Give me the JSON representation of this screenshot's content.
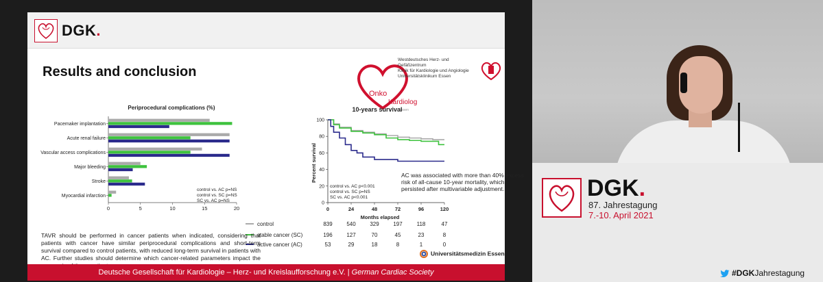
{
  "header": {
    "logo_text": "DGK",
    "logo_dot": "."
  },
  "slide": {
    "title": "Results and conclusion",
    "onko_logo": {
      "onko": "Onko",
      "kardiologie": "Kardiologie",
      "essen": "Essen"
    },
    "hospital_lines": [
      "Westdeutsches Herz- und Gefäßzentrum",
      "Klinik für Kardiologie und Angiologie",
      "Universitätsklinikum Essen"
    ],
    "footer_main": "Deutsche Gesellschaft für Kardiologie – Herz- und Kreislaufforschung e.V. | ",
    "footer_italic": "German Cardiac Society",
    "conclusion": "TAVR should be performed in cancer patients when indicated, considering that patients with cancer have similar periprocedural complications and short-term survival compared to control patients, with reduced long-term survival in patients with AC. Further studies should determine which cancer-related parameters impact the prognosis of these patients.",
    "ac_note": "AC was associated with more than 40% excess risk of all-cause 10-year mortality, which persisted after multivariable adjustment.",
    "survival_stats": [
      "control vs. AC p<0.001",
      "control vs. SC p=NS",
      "SC vs. AC p<0.001"
    ],
    "bar_stats": [
      "control vs. AC p=NS",
      "control vs. SC p=NS",
      "SC vs. AC p=NS"
    ],
    "university": "Universitätsmedizin Essen"
  },
  "chart_data": [
    {
      "type": "bar",
      "title": "Periprocedural complications (%)",
      "orientation": "horizontal",
      "categories": [
        "Pacemaker implantation",
        "Acute renal failure",
        "Vascular access complications",
        "Major bleeding",
        "Stroke",
        "Myocardial infarction"
      ],
      "series": [
        {
          "name": "control",
          "color": "#aaaaaa",
          "values": [
            15.8,
            18.9,
            14.6,
            5.0,
            3.2,
            1.2
          ]
        },
        {
          "name": "stable cancer (SC)",
          "color": "#3ec23e",
          "values": [
            19.3,
            12.8,
            12.8,
            6.0,
            3.7,
            0.5
          ]
        },
        {
          "name": "active cancer (AC)",
          "color": "#2b2b8c",
          "values": [
            9.5,
            18.9,
            18.9,
            3.8,
            5.7,
            0
          ]
        }
      ],
      "xlim": [
        0,
        20
      ],
      "xticks": [
        "0",
        "5",
        "10",
        "15",
        "20"
      ]
    },
    {
      "type": "line",
      "title": "10-years survival",
      "xlabel": "Months elapsed",
      "ylabel": "Percent survival",
      "xlim": [
        0,
        120
      ],
      "ylim": [
        0,
        100
      ],
      "xticks": [
        "0",
        "24",
        "48",
        "72",
        "96",
        "120"
      ],
      "yticks": [
        "0",
        "20",
        "40",
        "60",
        "80",
        "100"
      ],
      "series": [
        {
          "name": "control",
          "color": "#aaaaaa",
          "x": [
            0,
            6,
            12,
            24,
            36,
            48,
            60,
            72,
            84,
            96,
            108,
            120
          ],
          "y": [
            100,
            95,
            91,
            87,
            85,
            83,
            81,
            79,
            78,
            77,
            76,
            76
          ]
        },
        {
          "name": "stable cancer (SC)",
          "color": "#3ec23e",
          "x": [
            0,
            6,
            12,
            24,
            36,
            48,
            60,
            72,
            84,
            96,
            108,
            114,
            120
          ],
          "y": [
            100,
            94,
            90,
            86,
            84,
            82,
            78,
            76,
            75,
            74,
            74,
            70,
            70
          ]
        },
        {
          "name": "active cancer (AC)",
          "color": "#2b2b8c",
          "x": [
            0,
            3,
            6,
            12,
            18,
            24,
            30,
            36,
            48,
            60,
            72,
            96,
            120
          ],
          "y": [
            100,
            92,
            85,
            78,
            70,
            63,
            60,
            55,
            52,
            52,
            50,
            50,
            50
          ]
        }
      ],
      "risk_table": {
        "rows": [
          {
            "name": "control",
            "values": [
              "839",
              "540",
              "329",
              "197",
              "118",
              "47"
            ]
          },
          {
            "name": "stable cancer (SC)",
            "values": [
              "196",
              "127",
              "70",
              "45",
              "23",
              "8"
            ]
          },
          {
            "name": "active cancer (AC)",
            "values": [
              "53",
              "29",
              "18",
              "8",
              "1",
              "0"
            ]
          }
        ]
      }
    }
  ],
  "branding": {
    "dgk": "DGK",
    "dot": ".",
    "event": "87. Jahrestagung",
    "date": "7.-10. April 2021",
    "hashtag_bold": "#DGK",
    "hashtag_rest": "Jahrestagung"
  }
}
